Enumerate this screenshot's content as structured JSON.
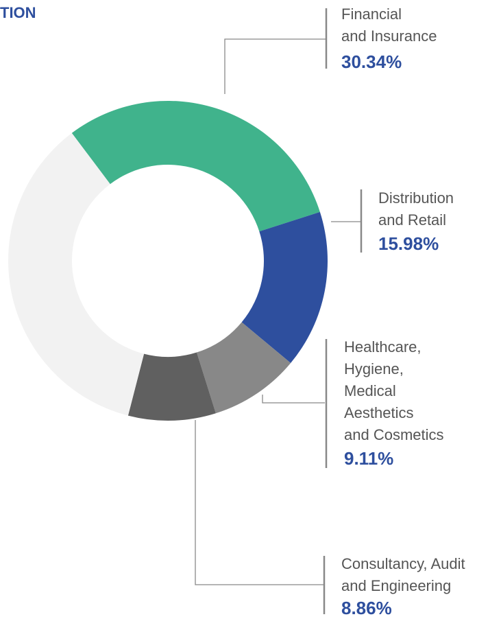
{
  "chart_data": {
    "type": "donut",
    "title": "TION",
    "categories": [
      [
        "Financial",
        "and Insurance"
      ],
      [
        "Distribution",
        "and Retail"
      ],
      [
        "Healthcare,",
        "Hygiene,",
        "Medical",
        "Aesthetics",
        "and Cosmetics"
      ],
      [
        "Consultancy, Audit",
        "and Engineering"
      ],
      null
    ],
    "values": [
      30.34,
      15.98,
      9.11,
      8.86,
      35.71
    ],
    "value_labels": [
      "30.34%",
      "15.98%",
      "9.11%",
      "8.86%",
      null
    ],
    "colors": [
      "#40b38c",
      "#2e4f9e",
      "#888888",
      "#606060",
      "#f2f2f2"
    ]
  }
}
